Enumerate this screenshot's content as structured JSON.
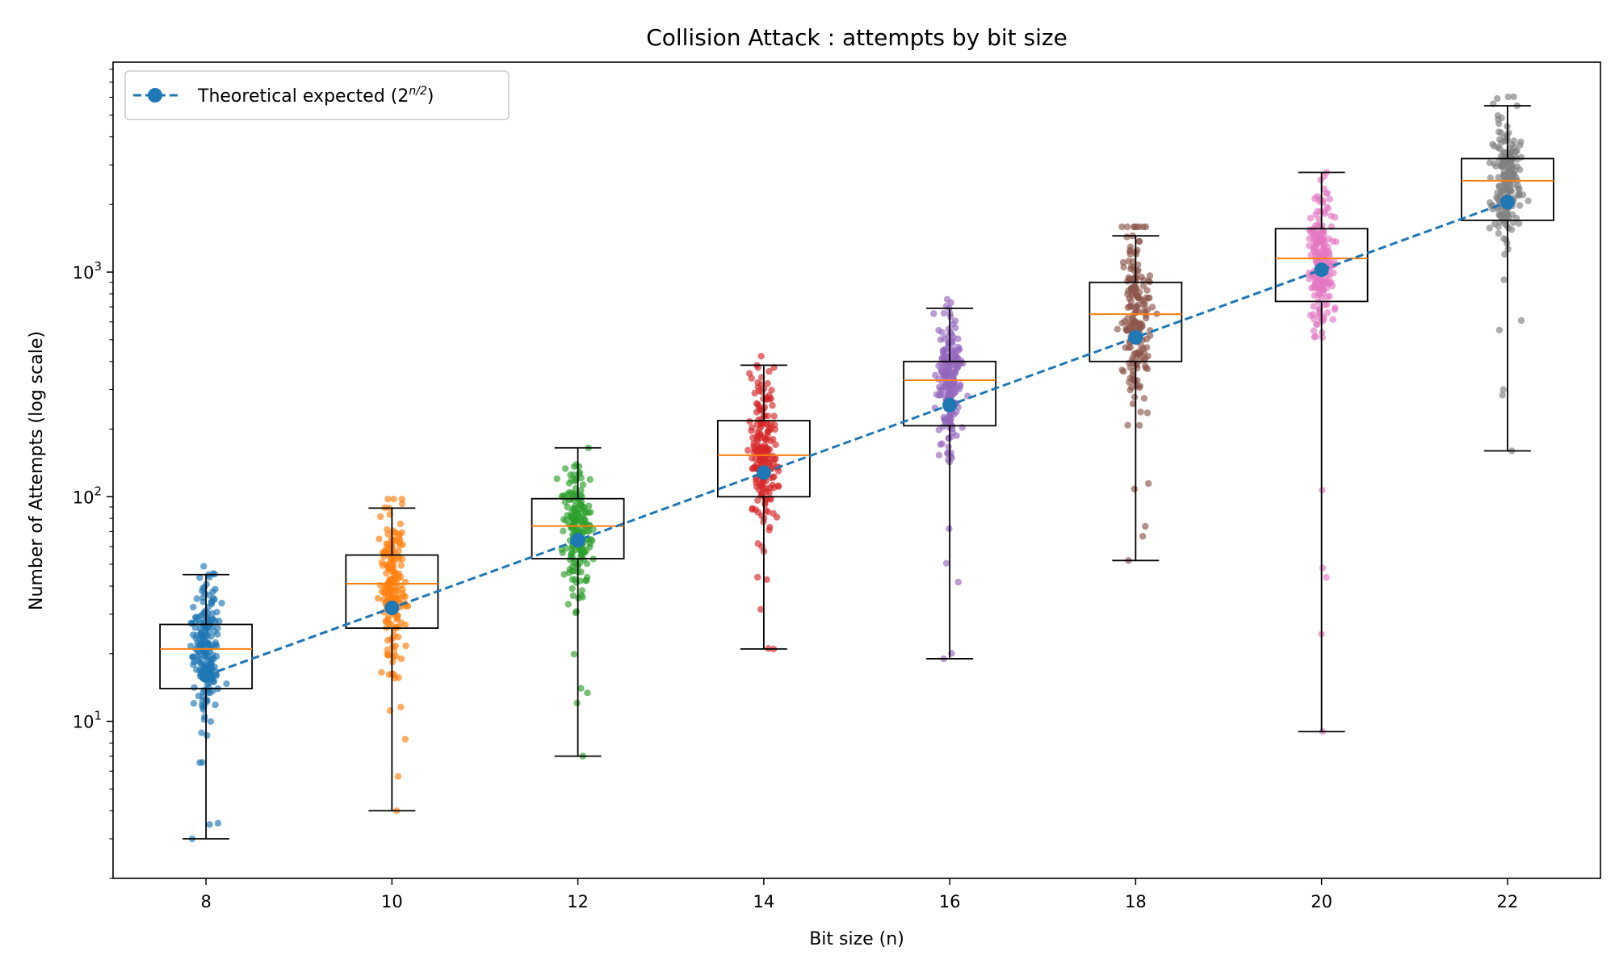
{
  "chart_data": {
    "type": "box",
    "title": "Collision Attack : attempts by bit size",
    "xlabel": "Bit size (n)",
    "ylabel": "Number of Attempts (log scale)",
    "yscale": "log",
    "ylim": [
      2,
      8600
    ],
    "xlim": [
      7,
      23
    ],
    "grid": false,
    "legend_position": "top-left",
    "x_ticks": [
      "8",
      "10",
      "12",
      "14",
      "16",
      "18",
      "20",
      "22"
    ],
    "y_ticks": [
      {
        "value": 10,
        "base": "10",
        "exp": "1"
      },
      {
        "value": 100,
        "base": "10",
        "exp": "2"
      },
      {
        "value": 1000,
        "base": "10",
        "exp": "3"
      }
    ],
    "boxes": [
      {
        "x": 8,
        "whisker_low": 3,
        "q1": 14,
        "median": 21,
        "q3": 27,
        "whisker_high": 45,
        "color": "#1f77b4"
      },
      {
        "x": 10,
        "whisker_low": 4,
        "q1": 26,
        "median": 41,
        "q3": 55,
        "whisker_high": 89,
        "color": "#ff7f0e"
      },
      {
        "x": 12,
        "whisker_low": 7,
        "q1": 53,
        "median": 74,
        "q3": 98,
        "whisker_high": 165,
        "color": "#2ca02c"
      },
      {
        "x": 14,
        "whisker_low": 21,
        "q1": 100,
        "median": 153,
        "q3": 218,
        "whisker_high": 385,
        "color": "#d62728"
      },
      {
        "x": 16,
        "whisker_low": 19,
        "q1": 207,
        "median": 330,
        "q3": 400,
        "whisker_high": 690,
        "color": "#9467bd"
      },
      {
        "x": 18,
        "whisker_low": 52,
        "q1": 400,
        "median": 650,
        "q3": 900,
        "whisker_high": 1450,
        "color": "#8c564b"
      },
      {
        "x": 20,
        "whisker_low": 9,
        "q1": 740,
        "median": 1150,
        "q3": 1560,
        "whisker_high": 2780,
        "color": "#e377c2"
      },
      {
        "x": 22,
        "whisker_low": 160,
        "q1": 1700,
        "median": 2550,
        "q3": 3200,
        "whisker_high": 5500,
        "color": "#7f7f7f"
      }
    ],
    "series": [
      {
        "name": "Theoretical expected (2^{n/2})",
        "type": "line",
        "style": "dashed",
        "marker": "circle",
        "color": "#1f77b4",
        "x": [
          8,
          10,
          12,
          14,
          16,
          18,
          20,
          22
        ],
        "y": [
          16,
          32,
          64,
          128,
          256,
          512,
          1024,
          2048
        ]
      }
    ],
    "legend": {
      "label_prefix": "Theoretical expected (2",
      "label_exponent": "n/2",
      "label_suffix": ")"
    },
    "box_outline_color": "#000000",
    "median_color": "#ff7f0e",
    "note": "Each box is overlaid with ~200 jittered individual trial points (semi-transparent, in the box's color) spanning the whisker range."
  }
}
